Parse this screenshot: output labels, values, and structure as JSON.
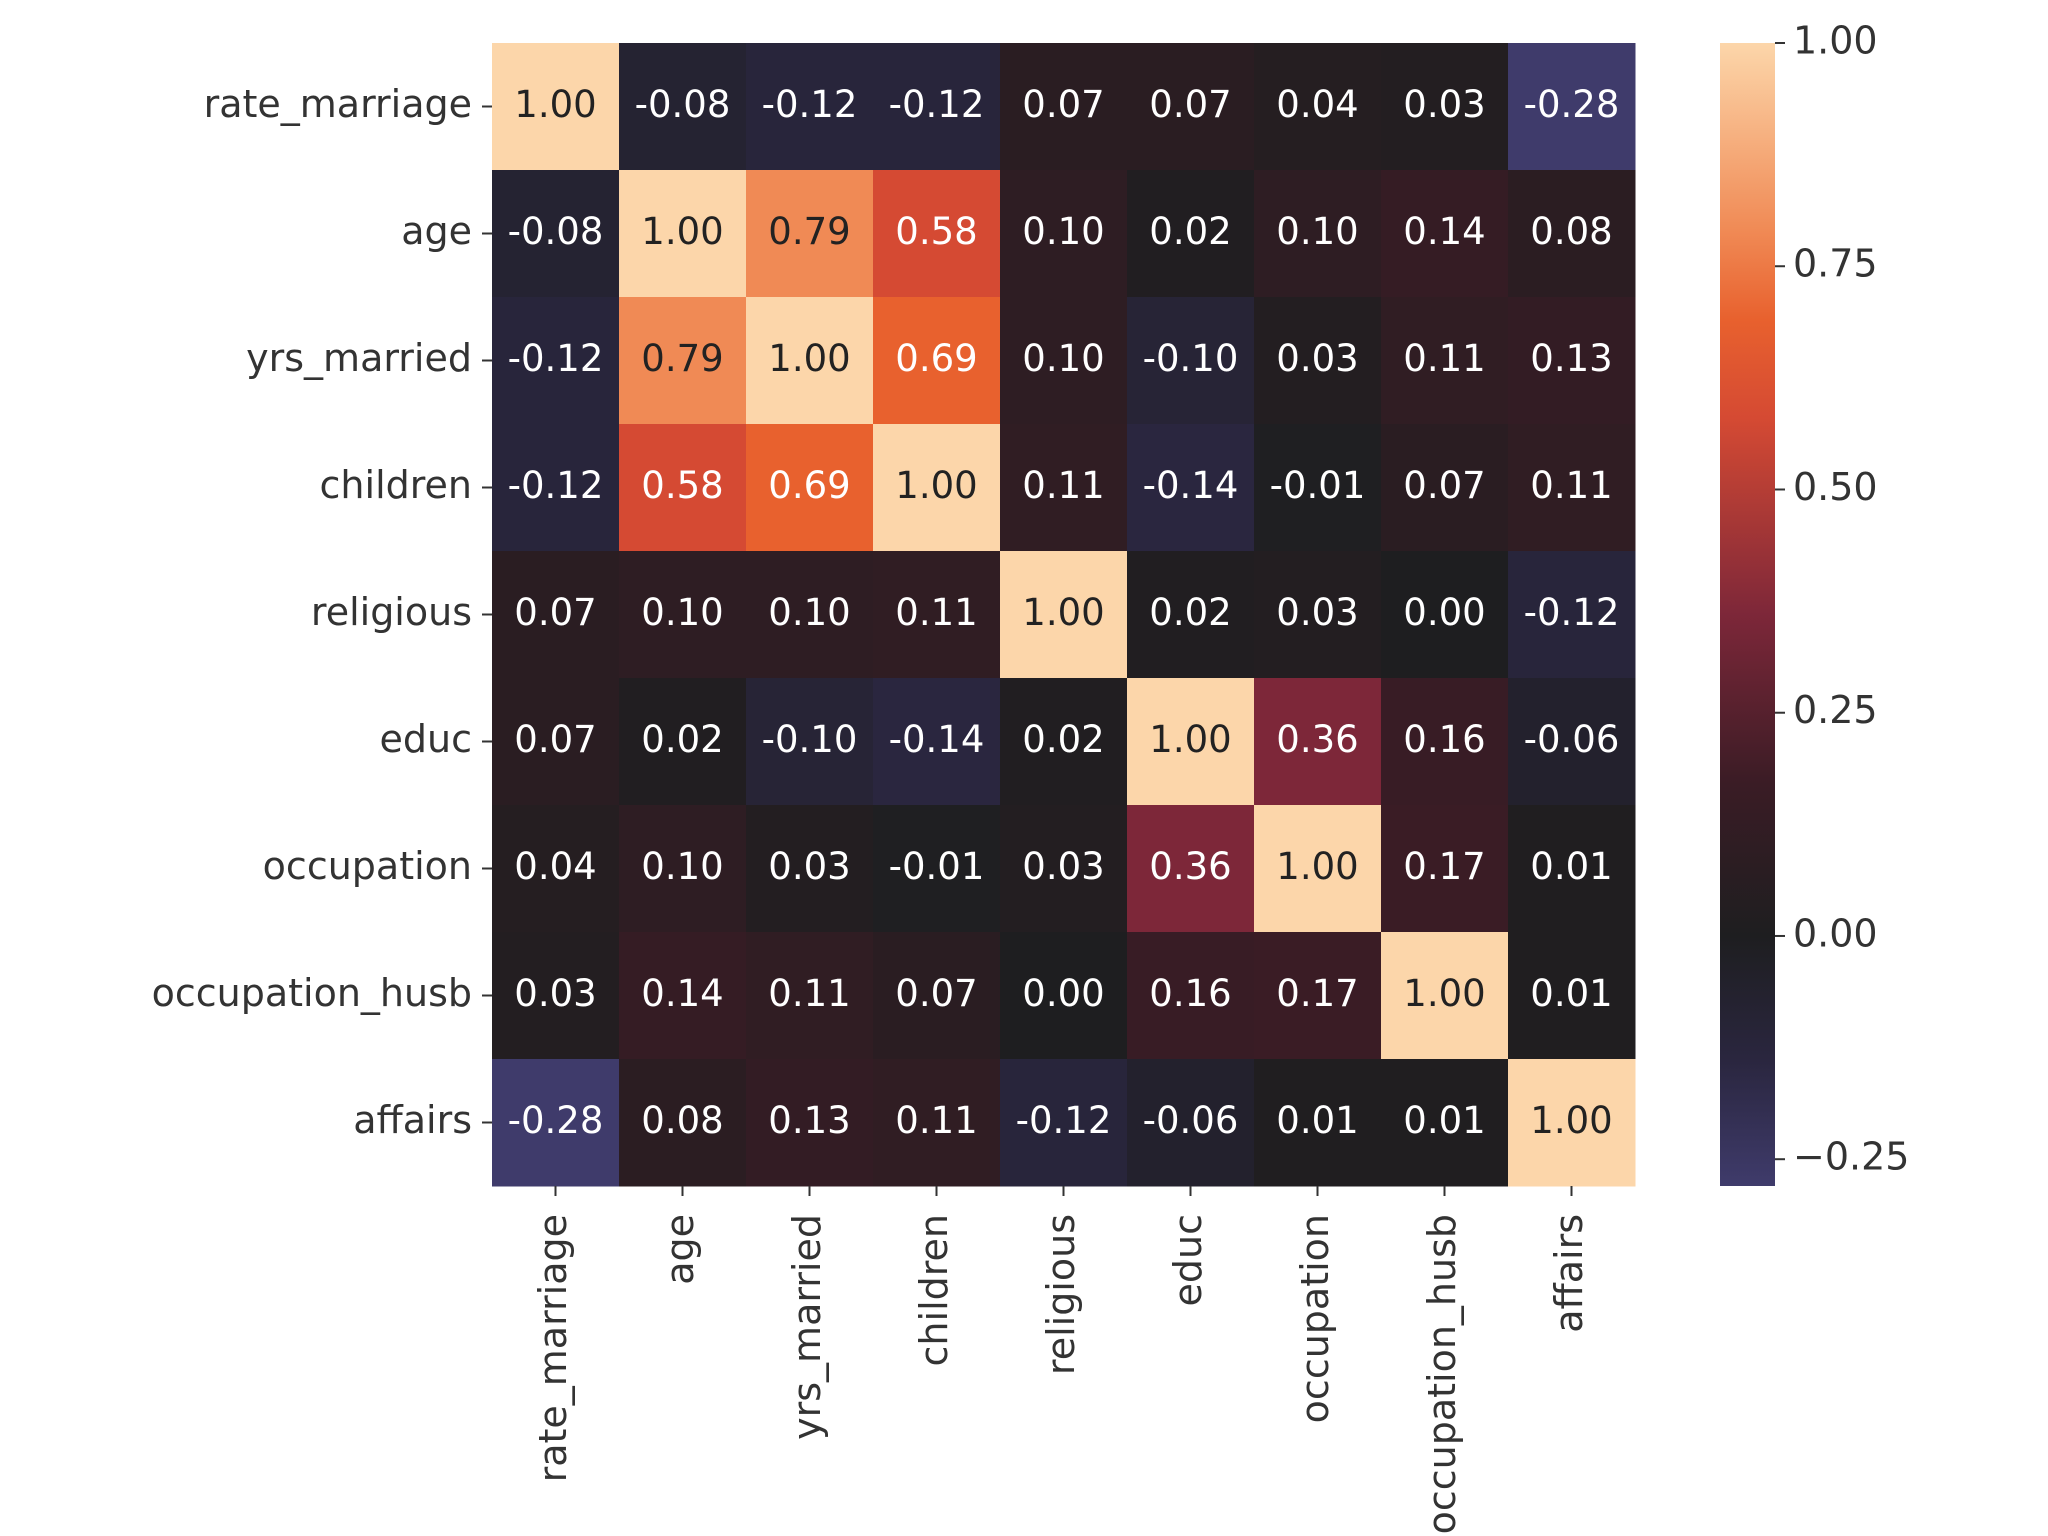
{
  "chart_data": {
    "type": "heatmap",
    "title": "",
    "xlabel": "",
    "ylabel": "",
    "x_categories": [
      "rate_marriage",
      "age",
      "yrs_married",
      "children",
      "religious",
      "educ",
      "occupation",
      "occupation_husb",
      "affairs"
    ],
    "y_categories": [
      "rate_marriage",
      "age",
      "yrs_married",
      "children",
      "religious",
      "educ",
      "occupation",
      "occupation_husb",
      "affairs"
    ],
    "values": [
      [
        1.0,
        -0.08,
        -0.12,
        -0.12,
        0.07,
        0.07,
        0.04,
        0.03,
        -0.28
      ],
      [
        -0.08,
        1.0,
        0.79,
        0.58,
        0.1,
        0.02,
        0.1,
        0.14,
        0.08
      ],
      [
        -0.12,
        0.79,
        1.0,
        0.69,
        0.1,
        -0.1,
        0.03,
        0.11,
        0.13
      ],
      [
        -0.12,
        0.58,
        0.69,
        1.0,
        0.11,
        -0.14,
        -0.01,
        0.07,
        0.11
      ],
      [
        0.07,
        0.1,
        0.1,
        0.11,
        1.0,
        0.02,
        0.03,
        0.0,
        -0.12
      ],
      [
        0.07,
        0.02,
        -0.1,
        -0.14,
        0.02,
        1.0,
        0.36,
        0.16,
        -0.06
      ],
      [
        0.04,
        0.1,
        0.03,
        -0.01,
        0.03,
        0.36,
        1.0,
        0.17,
        0.01
      ],
      [
        0.03,
        0.14,
        0.11,
        0.07,
        0.0,
        0.16,
        0.17,
        1.0,
        0.01
      ],
      [
        -0.28,
        0.08,
        0.13,
        0.11,
        -0.12,
        -0.06,
        0.01,
        0.01,
        1.0
      ]
    ],
    "annotations": [
      [
        "1.00",
        "-0.08",
        "-0.12",
        "-0.12",
        "0.07",
        "0.07",
        "0.04",
        "0.03",
        "-0.28"
      ],
      [
        "-0.08",
        "1.00",
        "0.79",
        "0.58",
        "0.10",
        "0.02",
        "0.10",
        "0.14",
        "0.08"
      ],
      [
        "-0.12",
        "0.79",
        "1.00",
        "0.69",
        "0.10",
        "-0.10",
        "0.03",
        "0.11",
        "0.13"
      ],
      [
        "-0.12",
        "0.58",
        "0.69",
        "1.00",
        "0.11",
        "-0.14",
        "-0.01",
        "0.07",
        "0.11"
      ],
      [
        "0.07",
        "0.10",
        "0.10",
        "0.11",
        "1.00",
        "0.02",
        "0.03",
        "0.00",
        "-0.12"
      ],
      [
        "0.07",
        "0.02",
        "-0.10",
        "-0.14",
        "0.02",
        "1.00",
        "0.36",
        "0.16",
        "-0.06"
      ],
      [
        "0.04",
        "0.10",
        "0.03",
        "-0.01",
        "0.03",
        "0.36",
        "1.00",
        "0.17",
        "0.01"
      ],
      [
        "0.03",
        "0.14",
        "0.11",
        "0.07",
        "0.00",
        "0.16",
        "0.17",
        "1.00",
        "0.01"
      ],
      [
        "-0.28",
        "0.08",
        "0.13",
        "0.11",
        "-0.12",
        "-0.06",
        "0.01",
        "0.01",
        "1.00"
      ]
    ],
    "colorbar": {
      "min": -0.28,
      "max": 1.0,
      "ticks": [
        1.0,
        0.75,
        0.5,
        0.25,
        0.0,
        -0.25
      ],
      "tick_labels": [
        "1.00",
        "0.75",
        "0.50",
        "0.25",
        "0.00",
        "−0.25"
      ]
    },
    "colormap": {
      "name": "diverging-dark-center",
      "center": 0.0,
      "stops": [
        {
          "value": -0.28,
          "color": "#3f3b6b"
        },
        {
          "value": -0.14,
          "color": "#2a263f"
        },
        {
          "value": 0.0,
          "color": "#1e1e20"
        },
        {
          "value": 0.17,
          "color": "#3a1c25"
        },
        {
          "value": 0.36,
          "color": "#7d2739"
        },
        {
          "value": 0.58,
          "color": "#d54a33"
        },
        {
          "value": 0.69,
          "color": "#e8612e"
        },
        {
          "value": 0.79,
          "color": "#f08a55"
        },
        {
          "value": 1.0,
          "color": "#fcd6aa"
        }
      ]
    },
    "grid": false,
    "legend": "right"
  }
}
